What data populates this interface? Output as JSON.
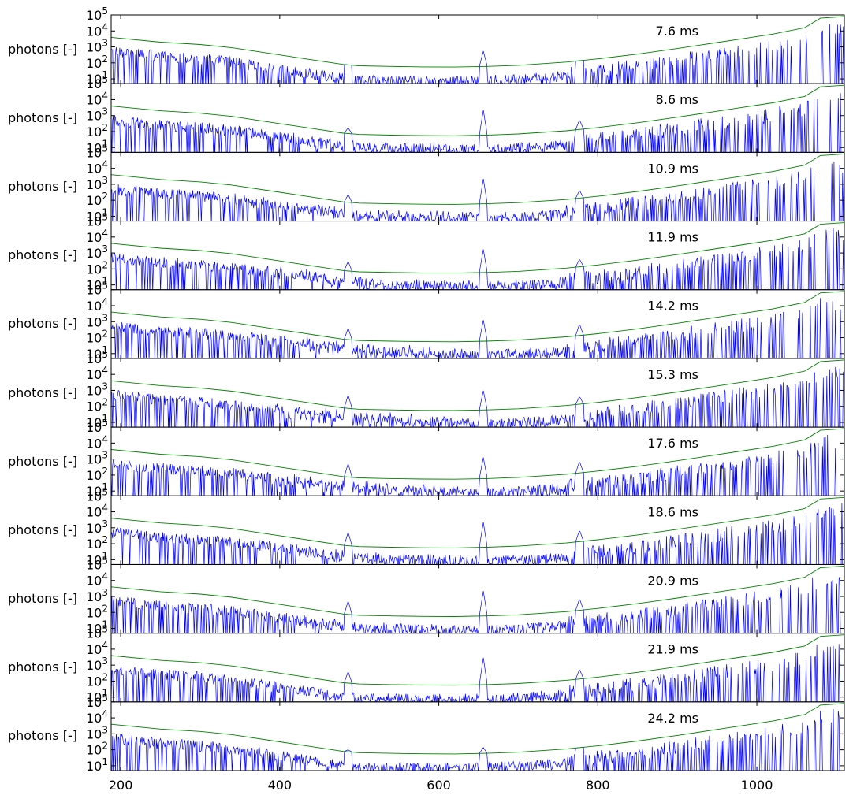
{
  "chart_data": {
    "type": "line",
    "yscale": "log",
    "xlim": [
      188,
      1110
    ],
    "ylim": [
      5,
      100000
    ],
    "xticks": [
      200,
      400,
      600,
      800,
      1000
    ],
    "xtick_labels": [
      "200",
      "400",
      "600",
      "800",
      "1000"
    ],
    "ytick_exponents": [
      1,
      2,
      3,
      4,
      5
    ],
    "ylabel": "photons [-]",
    "grid": false,
    "colors": {
      "signal": "#0000ff",
      "envelope": "#008000"
    },
    "envelope": {
      "x": [
        188,
        250,
        300,
        340,
        400,
        440,
        480,
        500,
        540,
        580,
        620,
        660,
        700,
        760,
        800,
        850,
        900,
        940,
        980,
        1020,
        1060,
        1080,
        1110
      ],
      "log10": [
        3.6,
        3.3,
        3.15,
        2.95,
        2.5,
        2.2,
        1.9,
        1.82,
        1.78,
        1.75,
        1.74,
        1.78,
        1.85,
        2.05,
        2.25,
        2.55,
        2.9,
        3.2,
        3.5,
        3.8,
        4.2,
        4.8,
        4.9
      ]
    },
    "emission_lines": [
      {
        "x": 486,
        "amp": [
          0.0,
          0.3,
          0.4,
          0.5,
          0.6,
          0.7,
          0.7,
          0.7,
          0.7,
          0.6,
          0.1
        ]
      },
      {
        "x": 656,
        "amp": [
          0.8,
          1.3,
          1.3,
          1.2,
          1.1,
          1.0,
          1.1,
          1.3,
          1.3,
          1.4,
          0.3
        ]
      },
      {
        "x": 777,
        "amp": [
          0.0,
          0.5,
          0.4,
          0.4,
          0.6,
          0.4,
          0.6,
          0.6,
          0.6,
          0.5,
          0.0
        ]
      }
    ],
    "panels": [
      {
        "label": "7.6 ms"
      },
      {
        "label": "8.6 ms"
      },
      {
        "label": "10.9 ms"
      },
      {
        "label": "11.9 ms"
      },
      {
        "label": "14.2 ms"
      },
      {
        "label": "15.3 ms"
      },
      {
        "label": "17.6 ms"
      },
      {
        "label": "18.6 ms"
      },
      {
        "label": "20.9 ms"
      },
      {
        "label": "21.9 ms"
      },
      {
        "label": "24.2 ms"
      }
    ]
  }
}
